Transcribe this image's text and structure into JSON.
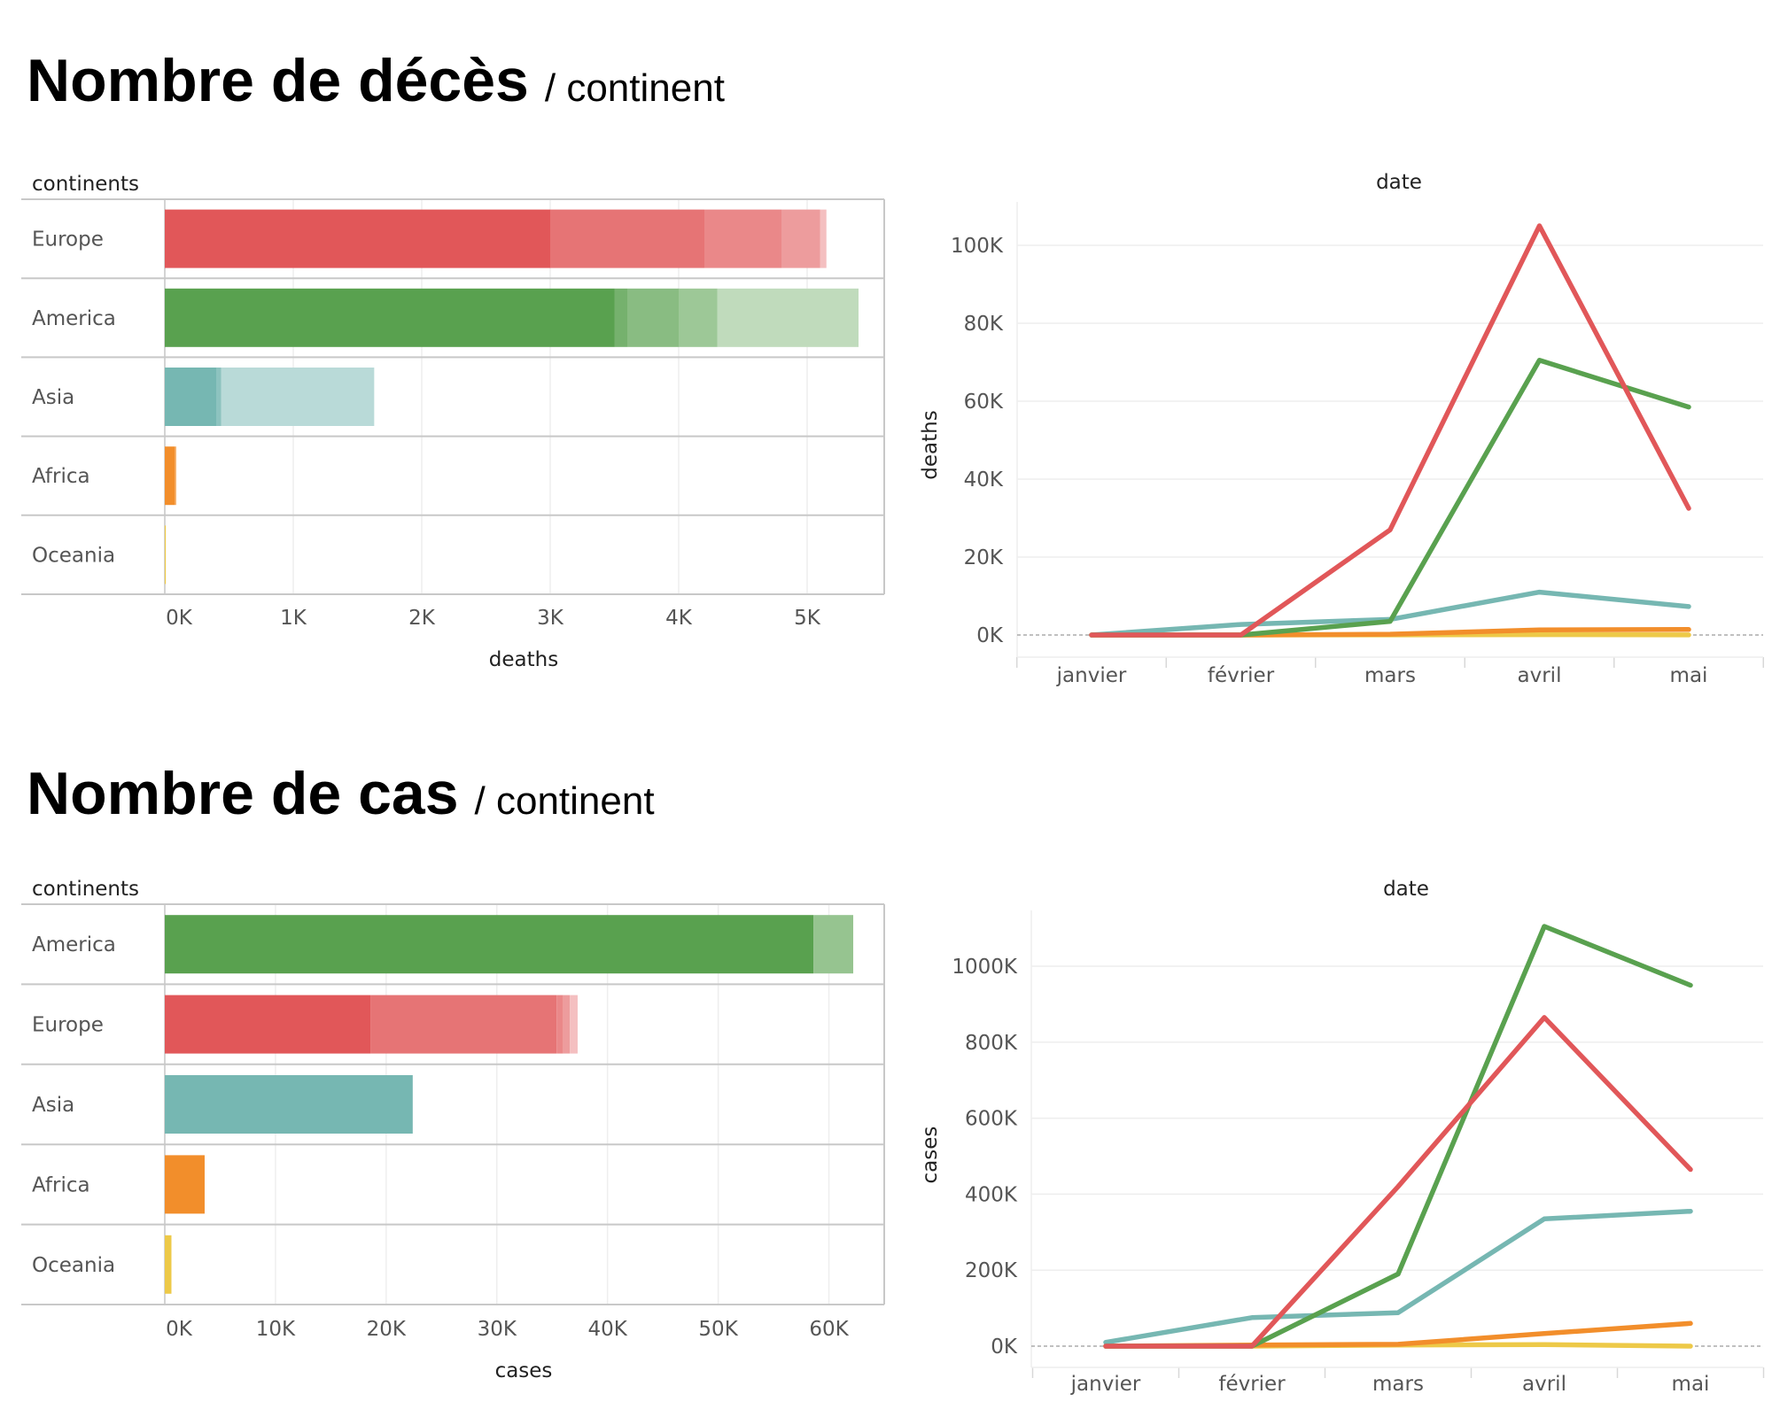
{
  "sections": [
    {
      "title": "Nombre de décès",
      "subtitle": "/ continent"
    },
    {
      "title": "Nombre de cas",
      "subtitle": "/ continent"
    }
  ],
  "colors": {
    "Europe": "#e15759",
    "America": "#59a14f",
    "Asia": "#76b7b2",
    "Africa": "#f28e2b",
    "Oceania": "#edc948"
  },
  "chart_data": [
    {
      "type": "bar",
      "orientation": "horizontal",
      "header": "continents",
      "categories": [
        "Europe",
        "America",
        "Asia",
        "Africa",
        "Oceania"
      ],
      "values": [
        5150,
        5400,
        1630,
        90,
        8
      ],
      "segments": [
        [
          3000,
          4200,
          4800,
          5100,
          5150
        ],
        [
          3500,
          3600,
          4000,
          4300,
          5400
        ],
        [
          400,
          440,
          1630
        ],
        [
          80,
          90
        ],
        [
          8
        ]
      ],
      "xlabel": "deaths",
      "xlim": [
        0,
        5600
      ],
      "xticks": [
        0,
        1000,
        2000,
        3000,
        4000,
        5000
      ],
      "xtick_labels": [
        "0K",
        "1K",
        "2K",
        "3K",
        "4K",
        "5K"
      ],
      "grid": true
    },
    {
      "type": "line",
      "header": "date",
      "x": [
        "janvier",
        "février",
        "mars",
        "avril",
        "mai"
      ],
      "series": [
        {
          "name": "Europe",
          "values": [
            0,
            0,
            27000,
            105000,
            32500
          ]
        },
        {
          "name": "America",
          "values": [
            0,
            0,
            3500,
            70500,
            58500
          ]
        },
        {
          "name": "Asia",
          "values": [
            0,
            2700,
            4000,
            11000,
            7300
          ]
        },
        {
          "name": "Africa",
          "values": [
            0,
            0,
            200,
            1300,
            1400
          ]
        },
        {
          "name": "Oceania",
          "values": [
            0,
            0,
            20,
            80,
            20
          ]
        }
      ],
      "ylabel": "deaths",
      "ylim": [
        -6000,
        112000
      ],
      "yticks": [
        0,
        20000,
        40000,
        60000,
        80000,
        100000
      ],
      "ytick_labels": [
        "0K",
        "20K",
        "40K",
        "60K",
        "80K",
        "100K"
      ],
      "grid": true
    },
    {
      "type": "bar",
      "orientation": "horizontal",
      "header": "continents",
      "categories": [
        "America",
        "Europe",
        "Asia",
        "Africa",
        "Oceania"
      ],
      "values": [
        62200,
        37300,
        22400,
        3600,
        600
      ],
      "segments": [
        [
          58600,
          62200
        ],
        [
          18600,
          35400,
          36000,
          36600,
          37300
        ],
        [
          22400
        ],
        [
          3600
        ],
        [
          600
        ]
      ],
      "xlabel": "cases",
      "xlim": [
        0,
        65000
      ],
      "xticks": [
        0,
        10000,
        20000,
        30000,
        40000,
        50000,
        60000
      ],
      "xtick_labels": [
        "0K",
        "10K",
        "20K",
        "30K",
        "40K",
        "50K",
        "60K"
      ],
      "grid": true
    },
    {
      "type": "line",
      "header": "date",
      "x": [
        "janvier",
        "février",
        "mars",
        "avril",
        "mai"
      ],
      "series": [
        {
          "name": "Europe",
          "values": [
            0,
            0,
            420000,
            865000,
            465000
          ]
        },
        {
          "name": "America",
          "values": [
            0,
            0,
            190000,
            1105000,
            950000
          ]
        },
        {
          "name": "Asia",
          "values": [
            10000,
            75000,
            88000,
            335000,
            355000
          ]
        },
        {
          "name": "Africa",
          "values": [
            0,
            3000,
            5000,
            33000,
            60000
          ]
        },
        {
          "name": "Oceania",
          "values": [
            0,
            0,
            3000,
            4000,
            0
          ]
        }
      ],
      "ylabel": "cases",
      "ylim": [
        -60000,
        1170000
      ],
      "yticks": [
        0,
        200000,
        400000,
        600000,
        800000,
        1000000
      ],
      "ytick_labels": [
        "0K",
        "200K",
        "400K",
        "600K",
        "800K",
        "1000K"
      ],
      "grid": true
    }
  ]
}
